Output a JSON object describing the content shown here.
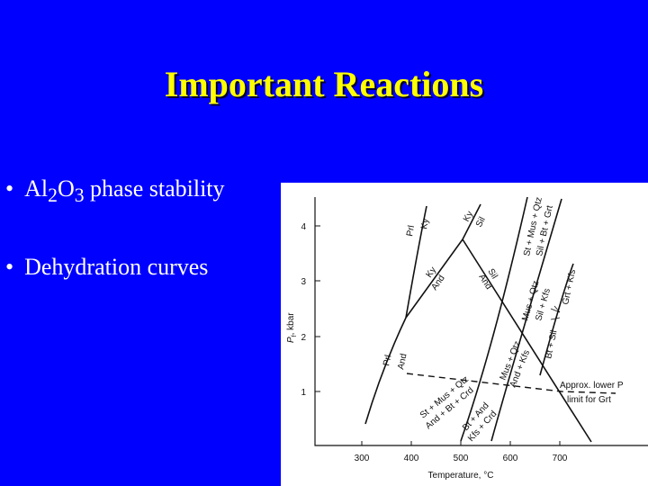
{
  "slide": {
    "title": "Important Reactions",
    "bullets": [
      {
        "symbol": "•",
        "pre": "Al",
        "sub1": "2",
        "mid": "O",
        "sub2": "3",
        "post": " phase stability"
      },
      {
        "symbol": "•",
        "text": "Dehydration curves"
      }
    ]
  },
  "colors": {
    "background": "#0000ff",
    "title": "#ffff00",
    "bullet_text": "#ffffff",
    "figure_bg": "#ffffff",
    "ink": "#111111"
  },
  "diagram": {
    "axes": {
      "x_label": "Temperature, °C",
      "y_label_main": "P",
      "y_label_sub": "f",
      "y_label_rest": ", kbar",
      "x_ticks": [
        "300",
        "400",
        "500",
        "600",
        "700"
      ],
      "y_ticks": [
        "1",
        "2",
        "3",
        "4"
      ]
    },
    "labels": {
      "prl_ky": "Prl",
      "ky_prl": "Ky",
      "ky_sil_ky": "Ky",
      "ky_sil_sil": "Sil",
      "ky_and_ky": "Ky",
      "ky_and_and": "And",
      "sil_and_sil": "Sil",
      "sil_and_and": "And",
      "prl_and_prl": "Prl",
      "prl_and_and": "And",
      "st_mus_qtz_top": "St + Mus + Qtz",
      "sil_bt_grt": "Sil + Bt + Grt",
      "grt_kfs": "Grt + Kfs",
      "bt_sil": "Bt + Sil",
      "mus_qtz_right": "Mus + Qtz",
      "sil_kfs": "Sil + Kfs",
      "mus_qtz_mid": "Mus + Qtz",
      "and_kfs": "And + Kfs",
      "st_mus_qtz_low": "St + Mus + Qtz",
      "and_bt_crd": "And + Bt + Crd",
      "bt_and": "Bt + And",
      "kfs_crd": "Kfs + Crd",
      "approx_lower_p": "Approx. lower P",
      "limit_for_grt": "limit for Grt"
    }
  }
}
